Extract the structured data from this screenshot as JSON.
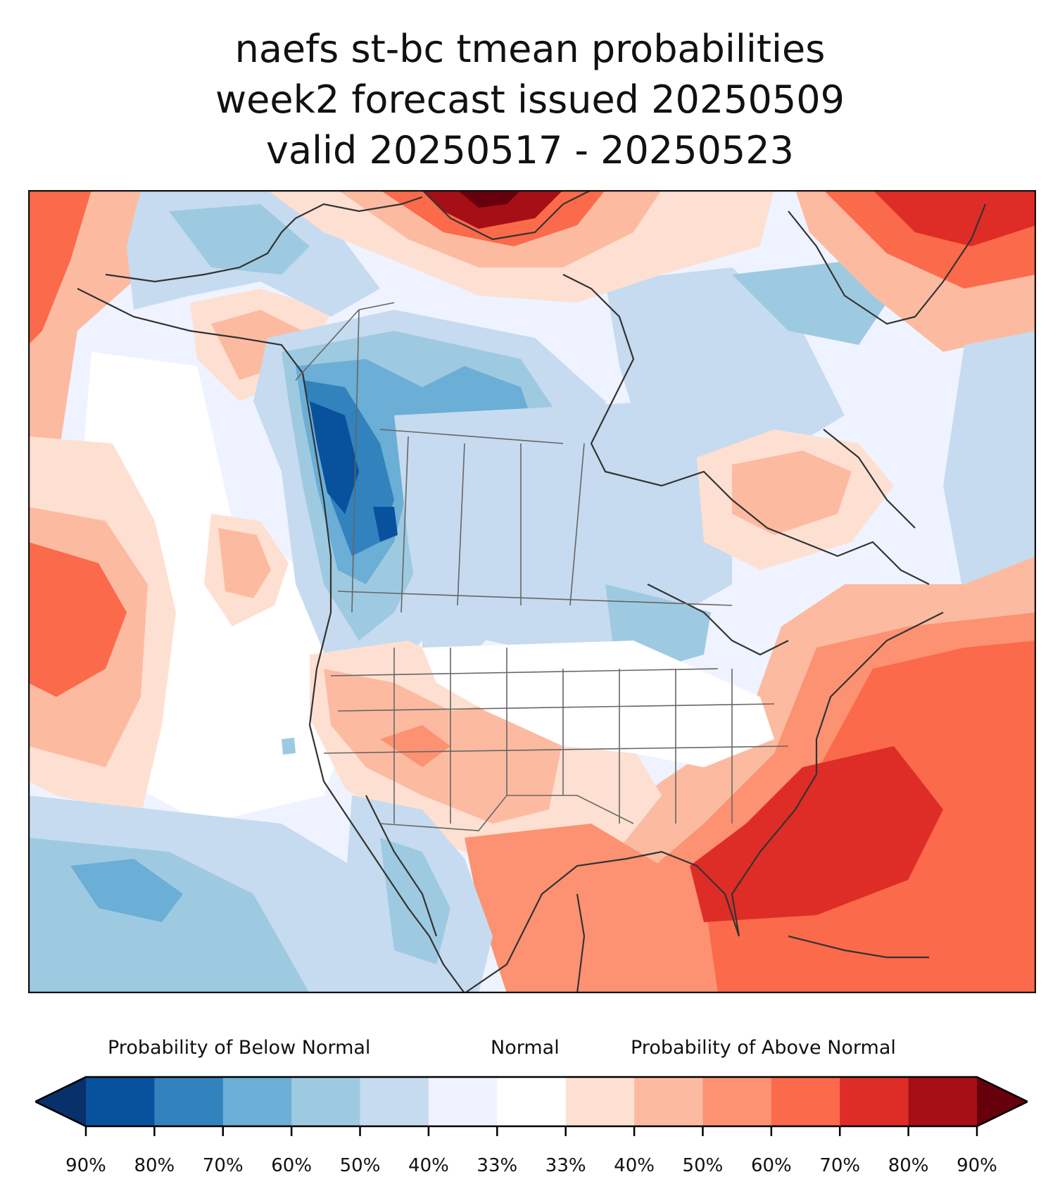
{
  "title": {
    "line1": "naefs st-bc tmean probabilities",
    "line2": "week2 forecast issued 20250509",
    "line3": "valid 20250517 - 20250523"
  },
  "colorbar": {
    "below_label": "Probability of Below Normal",
    "normal_label": "Normal",
    "above_label": "Probability of Above Normal",
    "ticks": [
      "90%",
      "80%",
      "70%",
      "60%",
      "50%",
      "40%",
      "33%",
      "33%",
      "40%",
      "50%",
      "60%",
      "70%",
      "80%",
      "90%"
    ],
    "colors": [
      "#08519c",
      "#3182bd",
      "#6baed6",
      "#9ecae1",
      "#c6dbef",
      "#eff3ff",
      "#ffffff",
      "#fee0d2",
      "#fcbba1",
      "#fc9272",
      "#fb6a4a",
      "#de2d26",
      "#a50f15"
    ],
    "extend_below_color": "#08306b",
    "extend_above_color": "#67000d"
  },
  "map": {
    "ocean_color": "#eff3ff",
    "coastline_color": "#333333",
    "border_color": "#666666"
  }
}
